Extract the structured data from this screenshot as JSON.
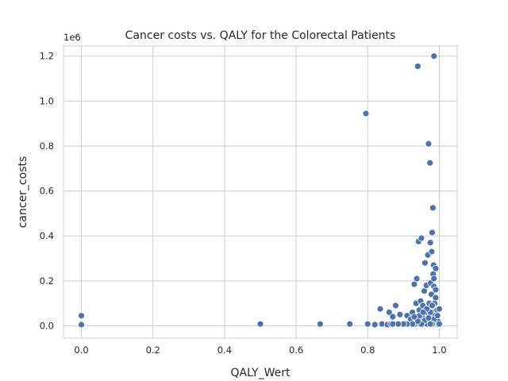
{
  "chart_data": {
    "type": "scatter",
    "title": "Cancer costs vs. QALY for the Colorectal Patients",
    "xlabel": "QALY_Wert",
    "ylabel": "cancer_costs",
    "y_offset_label": "1e6",
    "xlim": [
      -0.05,
      1.05
    ],
    "ylim": [
      -55000,
      1245000
    ],
    "x_ticks": [
      0.0,
      0.2,
      0.4,
      0.6,
      0.8,
      1.0
    ],
    "x_tick_labels": [
      "0.0",
      "0.2",
      "0.4",
      "0.6",
      "0.8",
      "1.0"
    ],
    "y_ticks": [
      0,
      200000,
      400000,
      600000,
      800000,
      1000000,
      1200000
    ],
    "y_tick_labels": [
      "0.0",
      "0.2",
      "0.4",
      "0.6",
      "0.8",
      "1.0",
      "1.2"
    ],
    "grid": true,
    "point_color": "#4c72b0",
    "points": [
      [
        0.0,
        45000
      ],
      [
        0.0,
        5000
      ],
      [
        0.5,
        8000
      ],
      [
        0.667,
        8000
      ],
      [
        0.75,
        8000
      ],
      [
        0.795,
        945000
      ],
      [
        0.8,
        8000
      ],
      [
        0.82,
        5000
      ],
      [
        0.835,
        75000
      ],
      [
        0.84,
        8000
      ],
      [
        0.855,
        5000
      ],
      [
        0.86,
        60000
      ],
      [
        0.865,
        8000
      ],
      [
        0.87,
        40000
      ],
      [
        0.878,
        90000
      ],
      [
        0.88,
        8000
      ],
      [
        0.89,
        50000
      ],
      [
        0.895,
        8000
      ],
      [
        0.905,
        10000
      ],
      [
        0.91,
        45000
      ],
      [
        0.915,
        8000
      ],
      [
        0.92,
        30000
      ],
      [
        0.925,
        60000
      ],
      [
        0.93,
        185000
      ],
      [
        0.932,
        8000
      ],
      [
        0.935,
        100000
      ],
      [
        0.937,
        210000
      ],
      [
        0.94,
        1155000
      ],
      [
        0.942,
        375000
      ],
      [
        0.944,
        70000
      ],
      [
        0.946,
        8000
      ],
      [
        0.948,
        110000
      ],
      [
        0.95,
        390000
      ],
      [
        0.952,
        40000
      ],
      [
        0.954,
        90000
      ],
      [
        0.956,
        8000
      ],
      [
        0.958,
        155000
      ],
      [
        0.96,
        280000
      ],
      [
        0.962,
        60000
      ],
      [
        0.964,
        180000
      ],
      [
        0.966,
        8000
      ],
      [
        0.968,
        315000
      ],
      [
        0.97,
        810000
      ],
      [
        0.972,
        100000
      ],
      [
        0.974,
        725000
      ],
      [
        0.975,
        370000
      ],
      [
        0.976,
        190000
      ],
      [
        0.977,
        8000
      ],
      [
        0.978,
        140000
      ],
      [
        0.979,
        330000
      ],
      [
        0.98,
        415000
      ],
      [
        0.981,
        60000
      ],
      [
        0.982,
        525000
      ],
      [
        0.983,
        230000
      ],
      [
        0.984,
        270000
      ],
      [
        0.985,
        1200000
      ],
      [
        0.986,
        8000
      ],
      [
        0.987,
        100000
      ],
      [
        0.988,
        45000
      ],
      [
        0.99,
        255000
      ],
      [
        0.992,
        8000
      ],
      [
        0.994,
        70000
      ],
      [
        0.996,
        20000
      ],
      [
        0.998,
        5000
      ],
      [
        0.985,
        175000
      ],
      [
        0.99,
        125000
      ],
      [
        0.975,
        60000
      ],
      [
        0.96,
        25000
      ],
      [
        0.95,
        8000
      ],
      [
        0.945,
        45000
      ],
      [
        0.985,
        30000
      ],
      [
        0.99,
        160000
      ],
      [
        0.98,
        8000
      ],
      [
        0.97,
        35000
      ],
      [
        0.965,
        75000
      ],
      [
        0.955,
        60000
      ],
      [
        0.94,
        20000
      ],
      [
        0.93,
        40000
      ],
      [
        0.925,
        8000
      ],
      [
        0.91,
        8000
      ],
      [
        0.9,
        8000
      ],
      [
        0.885,
        8000
      ],
      [
        0.87,
        8000
      ],
      [
        0.985,
        210000
      ],
      [
        0.98,
        90000
      ],
      [
        0.975,
        8000
      ],
      [
        0.995,
        45000
      ],
      [
        1.0,
        75000
      ],
      [
        1.0,
        8000
      ]
    ]
  }
}
